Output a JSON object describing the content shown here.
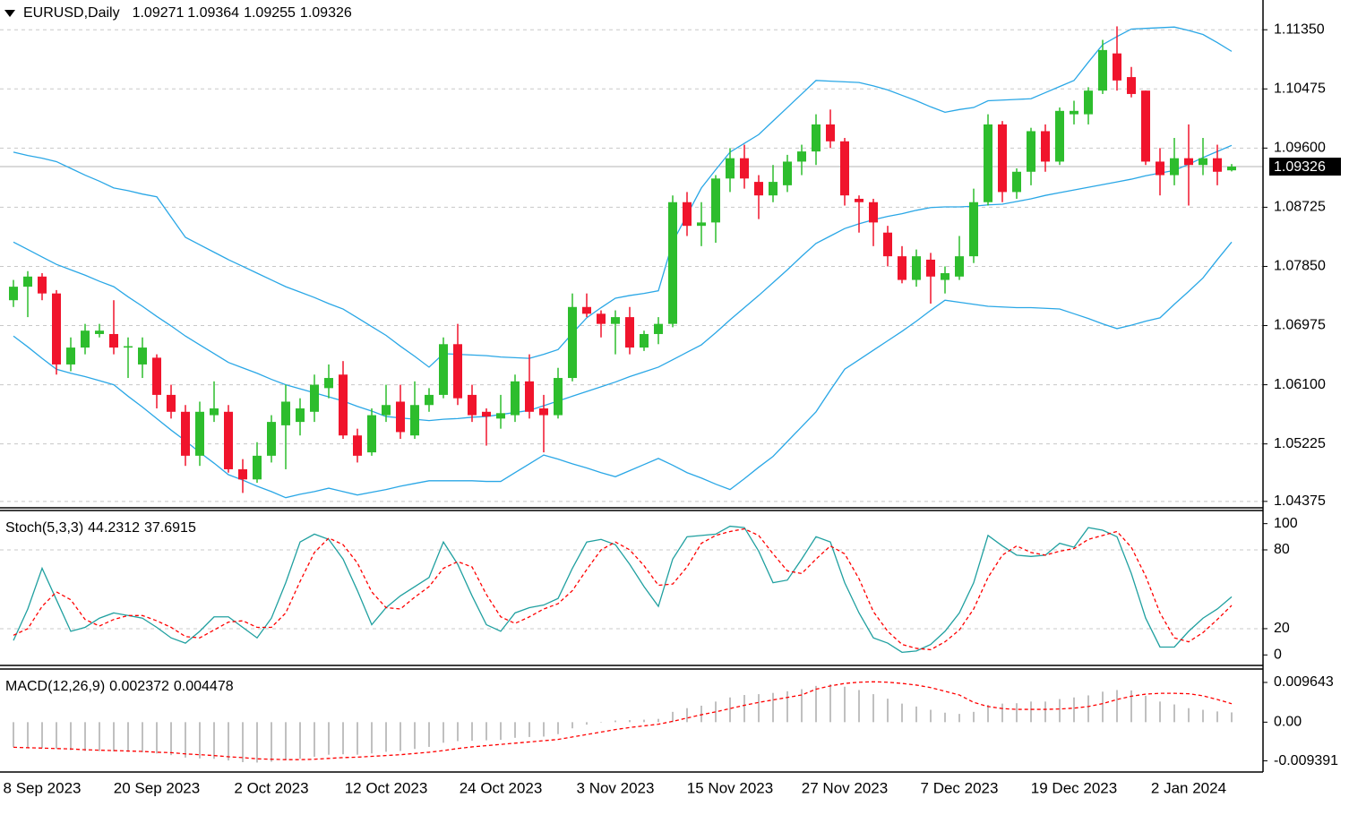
{
  "chart_data": [
    {
      "type": "candlestick",
      "title": "EURUSD,Daily",
      "categories": [
        null,
        null,
        "8 Sep 2023",
        null,
        null,
        null,
        null,
        null,
        null,
        null,
        "20 Sep 2023",
        null,
        null,
        null,
        null,
        null,
        null,
        null,
        "2 Oct 2023",
        null,
        null,
        null,
        null,
        null,
        null,
        null,
        "12 Oct 2023",
        null,
        null,
        null,
        null,
        null,
        null,
        null,
        "24 Oct 2023",
        null,
        null,
        null,
        null,
        null,
        null,
        null,
        "3 Nov 2023",
        null,
        null,
        null,
        null,
        null,
        null,
        null,
        "15 Nov 2023",
        null,
        null,
        null,
        null,
        null,
        null,
        null,
        "27 Nov 2023",
        null,
        null,
        null,
        null,
        null,
        null,
        null,
        "7 Dec 2023",
        null,
        null,
        null,
        null,
        null,
        null,
        null,
        "19 Dec 2023",
        null,
        null,
        null,
        null,
        null,
        null,
        null,
        "2 Jan 2024",
        null,
        null,
        null
      ],
      "open": [
        1.0735,
        1.0755,
        1.077,
        1.0745,
        1.064,
        1.0665,
        1.0685,
        1.0685,
        1.0665,
        1.064,
        1.065,
        1.0595,
        1.057,
        1.0505,
        1.0565,
        1.057,
        1.0485,
        1.047,
        1.0505,
        1.055,
        1.0555,
        1.057,
        1.0605,
        1.0625,
        1.0535,
        1.051,
        1.0565,
        1.0585,
        1.0535,
        1.058,
        1.0595,
        1.067,
        1.0595,
        1.057,
        1.056,
        1.0565,
        1.0615,
        1.0575,
        1.0565,
        1.062,
        1.0725,
        1.0715,
        1.07,
        1.071,
        1.0665,
        1.0685,
        1.07,
        1.088,
        1.0845,
        1.085,
        1.0915,
        1.0945,
        1.091,
        1.089,
        1.0905,
        1.094,
        1.0955,
        1.0995,
        1.097,
        1.0885,
        1.088,
        1.0835,
        1.08,
        1.0765,
        1.0795,
        1.0765,
        1.077,
        1.08,
        1.088,
        1.0995,
        1.0895,
        1.0925,
        1.0985,
        1.094,
        1.101,
        1.101,
        1.1045,
        1.11,
        1.1065,
        1.1045,
        1.094,
        1.092,
        1.0945,
        1.0935,
        1.0945,
        1.09271
      ],
      "high": [
        1.0765,
        1.0778,
        1.0775,
        1.075,
        1.068,
        1.07,
        1.07,
        1.0735,
        1.068,
        1.068,
        1.0655,
        1.061,
        1.058,
        1.0585,
        1.0615,
        1.058,
        1.05,
        1.0525,
        1.0565,
        1.061,
        1.059,
        1.0625,
        1.064,
        1.0645,
        1.0545,
        1.0575,
        1.061,
        1.061,
        1.0615,
        1.0605,
        1.068,
        1.07,
        1.061,
        1.0575,
        1.0595,
        1.0625,
        1.0655,
        1.0595,
        1.0635,
        1.0745,
        1.0745,
        1.072,
        1.072,
        1.0725,
        1.069,
        1.071,
        1.089,
        1.0895,
        1.088,
        1.092,
        1.096,
        1.0965,
        1.092,
        1.0935,
        1.095,
        1.0965,
        1.101,
        1.1017,
        1.0975,
        1.089,
        1.0885,
        1.0845,
        1.0815,
        1.081,
        1.0805,
        1.0785,
        1.083,
        1.09,
        1.101,
        1.1,
        1.093,
        1.099,
        1.0995,
        1.102,
        1.103,
        1.105,
        1.112,
        1.114,
        1.108,
        1.1045,
        1.096,
        1.0975,
        1.0995,
        1.0975,
        1.0965,
        1.09364
      ],
      "low": [
        1.0725,
        1.071,
        1.0735,
        1.0625,
        1.063,
        1.0655,
        1.068,
        1.0655,
        1.062,
        1.062,
        1.0575,
        1.056,
        1.049,
        1.049,
        1.0555,
        1.048,
        1.045,
        1.0465,
        1.0495,
        1.0485,
        1.0535,
        1.0555,
        1.059,
        1.053,
        1.0495,
        1.0505,
        1.0555,
        1.053,
        1.053,
        1.057,
        1.059,
        1.058,
        1.0555,
        1.052,
        1.0545,
        1.0555,
        1.056,
        1.051,
        1.056,
        1.0615,
        1.071,
        1.068,
        1.0655,
        1.0655,
        1.066,
        1.067,
        1.0695,
        1.083,
        1.0815,
        1.082,
        1.0895,
        1.09,
        1.0855,
        1.088,
        1.0895,
        1.092,
        1.0935,
        1.096,
        1.0875,
        1.0835,
        1.0815,
        1.0785,
        1.076,
        1.0755,
        1.073,
        1.0745,
        1.0765,
        1.079,
        1.0875,
        1.088,
        1.0885,
        1.0905,
        1.0925,
        1.0935,
        1.0995,
        1.0995,
        1.104,
        1.1045,
        1.1035,
        1.0935,
        1.089,
        1.0905,
        1.0875,
        1.092,
        1.0905,
        1.09255
      ],
      "close": [
        1.0755,
        1.077,
        1.0745,
        1.064,
        1.0665,
        1.069,
        1.069,
        1.0665,
        1.0667,
        1.0665,
        1.0595,
        1.057,
        1.0505,
        1.057,
        1.0575,
        1.0485,
        1.047,
        1.0505,
        1.0555,
        1.0585,
        1.0575,
        1.061,
        1.062,
        1.0535,
        1.0505,
        1.0565,
        1.058,
        1.054,
        1.058,
        1.0595,
        1.067,
        1.059,
        1.0565,
        1.0563,
        1.0568,
        1.0615,
        1.057,
        1.0565,
        1.062,
        1.0725,
        1.0715,
        1.07,
        1.071,
        1.0665,
        1.0685,
        1.07,
        1.088,
        1.0845,
        1.085,
        1.0915,
        1.0945,
        1.0915,
        1.089,
        1.091,
        1.094,
        1.0955,
        1.0995,
        1.097,
        1.089,
        1.088,
        1.085,
        1.08,
        1.0765,
        1.08,
        1.077,
        1.0775,
        1.08,
        1.088,
        1.0995,
        1.0895,
        1.0925,
        1.0985,
        1.094,
        1.1015,
        1.1015,
        1.1045,
        1.1105,
        1.106,
        1.104,
        1.094,
        1.092,
        1.0945,
        1.0935,
        1.0945,
        1.0925,
        1.09326
      ],
      "up_color": "#2dbd2d",
      "down_color": "#f0142c",
      "price_line_color": "#b4b4b4",
      "bands": {
        "color": "#2aa7e6",
        "upper": [
          1.0954,
          1.0949,
          1.0945,
          1.094,
          1.093,
          1.092,
          1.0911,
          1.0901,
          1.0897,
          1.0892,
          1.0888,
          1.0858,
          1.0828,
          1.0817,
          1.0806,
          1.0795,
          1.0785,
          1.0775,
          1.0765,
          1.0755,
          1.0747,
          1.0739,
          1.073,
          1.0722,
          1.0709,
          1.0696,
          1.0683,
          1.0667,
          1.0652,
          1.0636,
          1.0656,
          1.0655,
          1.0654,
          1.0653,
          1.0651,
          1.065,
          1.0649,
          1.0655,
          1.0662,
          1.0686,
          1.0709,
          1.0724,
          1.0738,
          1.0742,
          1.0745,
          1.0749,
          1.0821,
          1.0861,
          1.0901,
          1.0928,
          1.0954,
          1.0967,
          1.098,
          1.1,
          1.102,
          1.104,
          1.106,
          1.1059,
          1.1058,
          1.1057,
          1.1052,
          1.1046,
          1.1038,
          1.103,
          1.1021,
          1.1013,
          1.1017,
          1.102,
          1.103,
          1.1031,
          1.1032,
          1.1033,
          1.1042,
          1.1051,
          1.106,
          1.1087,
          1.1113,
          1.1125,
          1.1136,
          1.1137,
          1.1138,
          1.1139,
          1.1134,
          1.1128,
          1.1116,
          1.1103
        ],
        "middle": [
          1.0821,
          1.081,
          1.0799,
          1.0788,
          1.078,
          1.0772,
          1.0763,
          1.0755,
          1.074,
          1.0726,
          1.0711,
          1.0697,
          1.0682,
          1.0669,
          1.0656,
          1.0643,
          1.0635,
          1.0627,
          1.0618,
          1.061,
          1.0604,
          1.0598,
          1.0592,
          1.0586,
          1.0578,
          1.0571,
          1.0563,
          1.0561,
          1.0559,
          1.0557,
          1.0559,
          1.056,
          1.0562,
          1.0563,
          1.0566,
          1.0569,
          1.0572,
          1.0579,
          1.0586,
          1.0593,
          1.06,
          1.0607,
          1.0614,
          1.0622,
          1.0629,
          1.0636,
          1.0647,
          1.0658,
          1.0669,
          1.0687,
          1.0706,
          1.0724,
          1.0742,
          1.0761,
          1.078,
          1.08,
          1.0819,
          1.083,
          1.0841,
          1.0848,
          1.0854,
          1.0859,
          1.0863,
          1.0868,
          1.0872,
          1.0873,
          1.0873,
          1.0874,
          1.0876,
          1.0877,
          1.0881,
          1.0885,
          1.089,
          1.0894,
          1.0898,
          1.0902,
          1.0906,
          1.091,
          1.0914,
          1.0919,
          1.0923,
          1.0927,
          1.0936,
          1.0946,
          1.0955,
          1.0964
        ],
        "lower": [
          1.0682,
          1.0666,
          1.0649,
          1.0633,
          1.0627,
          1.0622,
          1.0616,
          1.061,
          1.0593,
          1.0577,
          1.056,
          1.0543,
          1.0527,
          1.051,
          1.0494,
          1.0477,
          1.0469,
          1.046,
          1.0452,
          1.0443,
          1.0448,
          1.0452,
          1.0457,
          1.0452,
          1.0447,
          1.0451,
          1.0455,
          1.046,
          1.0464,
          1.0468,
          1.0468,
          1.0468,
          1.0468,
          1.0467,
          1.0467,
          1.048,
          1.0493,
          1.0506,
          1.05,
          1.0493,
          1.0487,
          1.048,
          1.0474,
          1.0483,
          1.0492,
          1.0501,
          1.0491,
          1.048,
          1.0472,
          1.0463,
          1.0455,
          1.0471,
          1.0488,
          1.0504,
          1.0526,
          1.0548,
          1.057,
          1.0602,
          1.0633,
          1.0647,
          1.0661,
          1.0675,
          1.0689,
          1.0704,
          1.072,
          1.0735,
          1.0732,
          1.0729,
          1.0726,
          1.0725,
          1.0724,
          1.0724,
          1.0723,
          1.0722,
          1.0715,
          1.0708,
          1.07,
          1.0693,
          1.0698,
          1.0704,
          1.0709,
          1.0729,
          1.0748,
          1.0768,
          1.0795,
          1.0821
        ]
      },
      "ylim": [
        1.0428,
        1.1179
      ],
      "yticks": [
        {
          "value": 1.04375,
          "label": "1.04375"
        },
        {
          "value": 1.05225,
          "label": "1.05225"
        },
        {
          "value": 1.061,
          "label": "1.06100"
        },
        {
          "value": 1.06975,
          "label": "1.06975"
        },
        {
          "value": 1.0785,
          "label": "1.07850"
        },
        {
          "value": 1.08725,
          "label": "1.08725"
        },
        {
          "value": 1.096,
          "label": "1.09600"
        },
        {
          "value": 1.10475,
          "label": "1.10475"
        },
        {
          "value": 1.1135,
          "label": "1.11350"
        }
      ],
      "grid": true
    },
    {
      "type": "line",
      "title": "Stoch(5,3,3)",
      "series": [
        {
          "color": "#20a0a0",
          "dashed": false,
          "values": [
            11,
            35,
            66,
            42,
            18,
            21,
            28,
            32,
            30,
            28,
            21,
            13,
            9,
            18,
            29,
            29,
            21,
            13,
            28,
            55,
            86,
            92,
            88,
            73,
            49,
            23,
            36,
            45,
            52,
            59,
            86,
            69,
            45,
            23,
            18,
            32,
            36,
            38,
            43,
            66,
            86,
            88,
            84,
            69,
            52,
            37,
            73,
            90,
            91,
            92,
            98,
            97,
            79,
            55,
            57,
            73,
            90,
            86,
            55,
            32,
            13,
            9,
            2,
            3,
            8,
            18,
            32,
            55,
            91,
            83,
            76,
            75,
            76,
            85,
            82,
            97,
            95,
            90,
            62,
            28,
            6,
            6,
            18,
            28,
            35,
            44.2312
          ]
        },
        {
          "color": "#ff0000",
          "dashed": true,
          "values": [
            15,
            20,
            37,
            48,
            42,
            27,
            22,
            27,
            30,
            30,
            26,
            21,
            14,
            13,
            19,
            25,
            26,
            21,
            21,
            32,
            56,
            78,
            89,
            84,
            70,
            48,
            36,
            35,
            44,
            52,
            66,
            71,
            67,
            46,
            29,
            24,
            29,
            35,
            39,
            49,
            65,
            80,
            86,
            80,
            68,
            53,
            54,
            67,
            85,
            91,
            94,
            96,
            91,
            77,
            64,
            62,
            73,
            83,
            77,
            58,
            33,
            18,
            8,
            5,
            4,
            10,
            19,
            35,
            59,
            76,
            83,
            78,
            76,
            79,
            81,
            88,
            91,
            94,
            82,
            60,
            32,
            13,
            10,
            17,
            27,
            37.6915
          ]
        }
      ],
      "ylim": [
        -8,
        110
      ],
      "yticks": [
        0,
        20,
        80,
        100
      ],
      "levels": [
        20,
        80
      ]
    },
    {
      "type": "macd",
      "title": "MACD(12,26,9)",
      "series": [
        {
          "color": "#c0c0c0",
          "dashed": false,
          "values": [
            -0.006,
            -0.0062,
            -0.0063,
            -0.0065,
            -0.0068,
            -0.007,
            -0.007,
            -0.0071,
            -0.0072,
            -0.0073,
            -0.0076,
            -0.008,
            -0.0086,
            -0.0088,
            -0.0089,
            -0.0093,
            -0.0097,
            -0.0098,
            -0.0096,
            -0.0092,
            -0.0089,
            -0.0084,
            -0.0079,
            -0.0078,
            -0.0079,
            -0.0076,
            -0.0072,
            -0.007,
            -0.0065,
            -0.006,
            -0.005,
            -0.0046,
            -0.0045,
            -0.0044,
            -0.0043,
            -0.0038,
            -0.0036,
            -0.0035,
            -0.0029,
            -0.0015,
            -0.0006,
            0.0,
            0.0004,
            0.0005,
            0.0006,
            0.0008,
            0.0025,
            0.0034,
            0.004,
            0.005,
            0.006,
            0.0066,
            0.0068,
            0.0071,
            0.0075,
            0.008,
            0.0088,
            0.0092,
            0.0086,
            0.0078,
            0.0068,
            0.0057,
            0.0045,
            0.0038,
            0.003,
            0.0023,
            0.002,
            0.0025,
            0.0042,
            0.0045,
            0.0046,
            0.005,
            0.005,
            0.0056,
            0.006,
            0.0065,
            0.0074,
            0.0078,
            0.0077,
            0.0064,
            0.005,
            0.0043,
            0.0034,
            0.003,
            0.0026,
            0.002372
          ]
        },
        {
          "color": "#ff0000",
          "dashed": true,
          "values": [
            -0.0061,
            -0.0062,
            -0.0063,
            -0.0064,
            -0.0065,
            -0.0067,
            -0.0068,
            -0.0069,
            -0.007,
            -0.0071,
            -0.0073,
            -0.0074,
            -0.0077,
            -0.0079,
            -0.0081,
            -0.0084,
            -0.0086,
            -0.0089,
            -0.009,
            -0.0091,
            -0.0091,
            -0.009,
            -0.0088,
            -0.0086,
            -0.0085,
            -0.0083,
            -0.0081,
            -0.0079,
            -0.0076,
            -0.0073,
            -0.0069,
            -0.0064,
            -0.006,
            -0.0057,
            -0.0054,
            -0.0051,
            -0.0048,
            -0.0045,
            -0.0042,
            -0.0036,
            -0.003,
            -0.0024,
            -0.0018,
            -0.0013,
            -0.0009,
            -0.0005,
            0.0002,
            0.001,
            0.0018,
            0.0025,
            0.0033,
            0.0041,
            0.0048,
            0.0054,
            0.006,
            0.0066,
            0.008,
            0.0088,
            0.0094,
            0.0097,
            0.0098,
            0.0097,
            0.0094,
            0.009,
            0.0084,
            0.0075,
            0.0066,
            0.0048,
            0.0038,
            0.0033,
            0.0031,
            0.0031,
            0.0031,
            0.0032,
            0.0034,
            0.0038,
            0.0045,
            0.0055,
            0.0063,
            0.0068,
            0.007,
            0.007,
            0.0069,
            0.0064,
            0.0055,
            0.004478
          ]
        }
      ],
      "ylim": [
        -0.0121,
        0.0129
      ],
      "yticks": [
        {
          "value": 0.009643,
          "label": "0.009643"
        },
        {
          "value": 0,
          "label": "0.00"
        },
        -0.009391
      ]
    }
  ]
}
